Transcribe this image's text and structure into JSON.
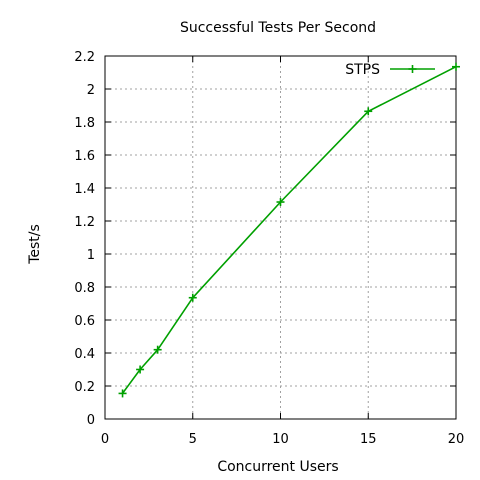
{
  "chart_data": {
    "type": "line",
    "title": "Successful Tests Per Second",
    "xlabel": "Concurrent Users",
    "ylabel": "Test/s",
    "xlim": [
      0,
      20
    ],
    "ylim": [
      0,
      2.2
    ],
    "xticks": [
      0,
      5,
      10,
      15,
      20
    ],
    "xtick_labels": [
      "0",
      "5",
      "10",
      "15",
      "20"
    ],
    "yticks": [
      0,
      0.2,
      0.4,
      0.6,
      0.8,
      1,
      1.2,
      1.4,
      1.6,
      1.8,
      2,
      2.2
    ],
    "ytick_labels": [
      "0",
      "0.2",
      "0.4",
      "0.6",
      "0.8",
      "1",
      "1.2",
      "1.4",
      "1.6",
      "1.8",
      "2",
      "2.2"
    ],
    "grid": true,
    "legend_position": "top-right",
    "series": [
      {
        "name": "STPS",
        "color": "#00a000",
        "marker": "plus",
        "x": [
          1,
          2,
          3,
          5,
          10,
          15,
          20
        ],
        "y": [
          0.155,
          0.3,
          0.42,
          0.735,
          1.315,
          1.865,
          2.135
        ]
      }
    ]
  }
}
